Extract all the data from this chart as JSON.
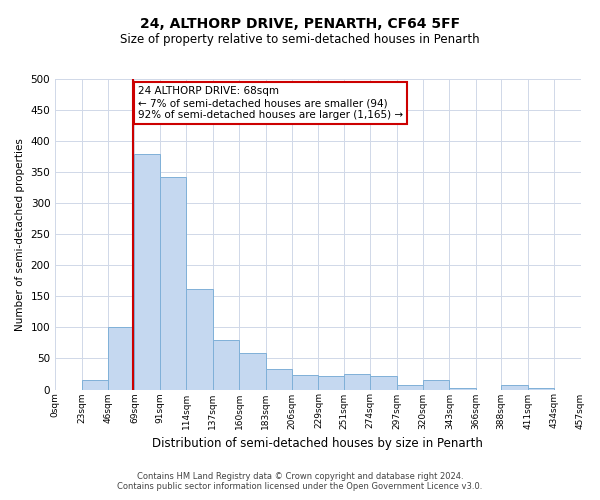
{
  "title": "24, ALTHORP DRIVE, PENARTH, CF64 5FF",
  "subtitle": "Size of property relative to semi-detached houses in Penarth",
  "xlabel": "Distribution of semi-detached houses by size in Penarth",
  "ylabel": "Number of semi-detached properties",
  "bin_edges": [
    0,
    23,
    46,
    69,
    91,
    114,
    137,
    160,
    183,
    206,
    229,
    251,
    274,
    297,
    320,
    343,
    366,
    388,
    411,
    434,
    457
  ],
  "bin_labels": [
    "0sqm",
    "23sqm",
    "46sqm",
    "69sqm",
    "91sqm",
    "114sqm",
    "137sqm",
    "160sqm",
    "183sqm",
    "206sqm",
    "229sqm",
    "251sqm",
    "274sqm",
    "297sqm",
    "320sqm",
    "343sqm",
    "366sqm",
    "388sqm",
    "411sqm",
    "434sqm",
    "457sqm"
  ],
  "counts": [
    0,
    15,
    100,
    380,
    343,
    162,
    80,
    58,
    33,
    23,
    22,
    25,
    22,
    8,
    15,
    3,
    0,
    7,
    3,
    0
  ],
  "bar_color": "#c5d8f0",
  "bar_edge_color": "#7fb0d8",
  "property_line_x": 68,
  "property_line_color": "#cc0000",
  "ylim": [
    0,
    500
  ],
  "yticks": [
    0,
    50,
    100,
    150,
    200,
    250,
    300,
    350,
    400,
    450,
    500
  ],
  "annotation_line1": "24 ALTHORP DRIVE: 68sqm",
  "annotation_line2": "← 7% of semi-detached houses are smaller (94)",
  "annotation_line3": "92% of semi-detached houses are larger (1,165) →",
  "annotation_box_color": "#ffffff",
  "annotation_box_edge": "#cc0000",
  "footer_line1": "Contains HM Land Registry data © Crown copyright and database right 2024.",
  "footer_line2": "Contains public sector information licensed under the Open Government Licence v3.0.",
  "background_color": "#ffffff",
  "grid_color": "#d0d8e8",
  "title_fontsize": 10,
  "subtitle_fontsize": 8.5,
  "xlabel_fontsize": 8.5,
  "ylabel_fontsize": 7.5,
  "ytick_fontsize": 7.5,
  "xtick_fontsize": 6.5,
  "annotation_fontsize": 7.5,
  "footer_fontsize": 6
}
